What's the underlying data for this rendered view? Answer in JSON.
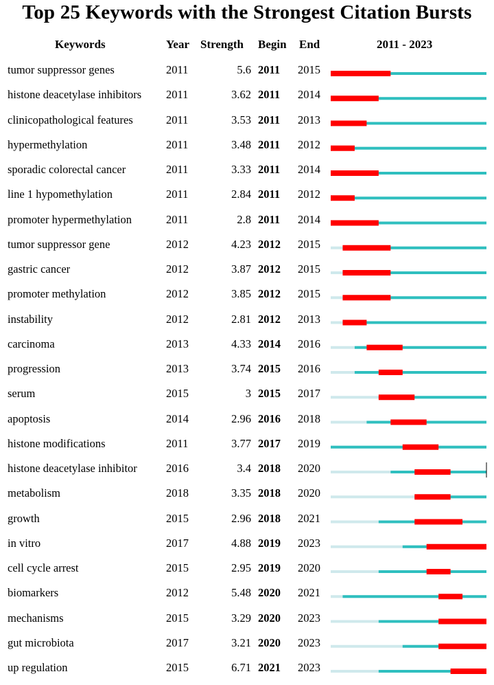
{
  "title": "Top 25 Keywords with the Strongest Citation Bursts",
  "headers": {
    "keywords": "Keywords",
    "year": "Year",
    "strength": "Strength",
    "begin": "Begin",
    "end": "End",
    "range": "2011 - 2023"
  },
  "colors": {
    "burst": "#ff0000",
    "active": "#2fbfbf",
    "inactive": "#cfe9ec",
    "marker": "#000000"
  },
  "chart_data": {
    "type": "table",
    "range": [
      2011,
      2023
    ],
    "rows": [
      {
        "keyword": "tumor suppressor genes",
        "year": 2011,
        "strength": "5.6",
        "begin": 2011,
        "end": 2015
      },
      {
        "keyword": "histone deacetylase inhibitors",
        "year": 2011,
        "strength": "3.62",
        "begin": 2011,
        "end": 2014
      },
      {
        "keyword": "clinicopathological features",
        "year": 2011,
        "strength": "3.53",
        "begin": 2011,
        "end": 2013
      },
      {
        "keyword": "hypermethylation",
        "year": 2011,
        "strength": "3.48",
        "begin": 2011,
        "end": 2012
      },
      {
        "keyword": "sporadic colorectal cancer",
        "year": 2011,
        "strength": "3.33",
        "begin": 2011,
        "end": 2014
      },
      {
        "keyword": "line 1 hypomethylation",
        "year": 2011,
        "strength": "2.84",
        "begin": 2011,
        "end": 2012
      },
      {
        "keyword": "promoter hypermethylation",
        "year": 2011,
        "strength": "2.8",
        "begin": 2011,
        "end": 2014
      },
      {
        "keyword": "tumor suppressor gene",
        "year": 2012,
        "strength": "4.23",
        "begin": 2012,
        "end": 2015
      },
      {
        "keyword": "gastric cancer",
        "year": 2012,
        "strength": "3.87",
        "begin": 2012,
        "end": 2015
      },
      {
        "keyword": "promoter methylation",
        "year": 2012,
        "strength": "3.85",
        "begin": 2012,
        "end": 2015
      },
      {
        "keyword": "instability",
        "year": 2012,
        "strength": "2.81",
        "begin": 2012,
        "end": 2013
      },
      {
        "keyword": "carcinoma",
        "year": 2013,
        "strength": "4.33",
        "begin": 2014,
        "end": 2016
      },
      {
        "keyword": "progression",
        "year": 2013,
        "strength": "3.74",
        "begin": 2015,
        "end": 2016
      },
      {
        "keyword": "serum",
        "year": 2015,
        "strength": "3",
        "begin": 2015,
        "end": 2017
      },
      {
        "keyword": "apoptosis",
        "year": 2014,
        "strength": "2.96",
        "begin": 2016,
        "end": 2018
      },
      {
        "keyword": "histone modifications",
        "year": 2011,
        "strength": "3.77",
        "begin": 2017,
        "end": 2019
      },
      {
        "keyword": "histone deacetylase inhibitor",
        "year": 2016,
        "strength": "3.4",
        "begin": 2018,
        "end": 2020
      },
      {
        "keyword": "metabolism",
        "year": 2018,
        "strength": "3.35",
        "begin": 2018,
        "end": 2020
      },
      {
        "keyword": "growth",
        "year": 2015,
        "strength": "2.96",
        "begin": 2018,
        "end": 2021
      },
      {
        "keyword": "in vitro",
        "year": 2017,
        "strength": "4.88",
        "begin": 2019,
        "end": 2023
      },
      {
        "keyword": "cell cycle arrest",
        "year": 2015,
        "strength": "2.95",
        "begin": 2019,
        "end": 2020
      },
      {
        "keyword": "biomarkers",
        "year": 2012,
        "strength": "5.48",
        "begin": 2020,
        "end": 2021
      },
      {
        "keyword": "mechanisms",
        "year": 2015,
        "strength": "3.29",
        "begin": 2020,
        "end": 2023
      },
      {
        "keyword": "gut microbiota",
        "year": 2017,
        "strength": "3.21",
        "begin": 2020,
        "end": 2023
      },
      {
        "keyword": "up regulation",
        "year": 2015,
        "strength": "6.71",
        "begin": 2021,
        "end": 2023
      }
    ]
  }
}
